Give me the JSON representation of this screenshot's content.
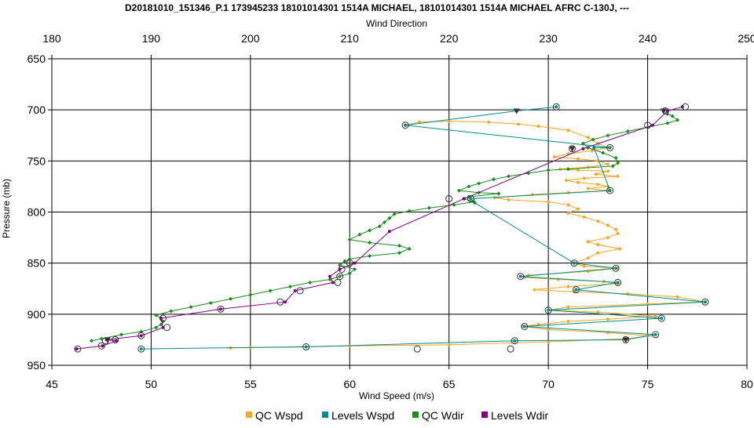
{
  "chart_data": {
    "type": "line",
    "title": "D20181010_151346_P.1 173945233 18101014301 1514A MICHAEL, 18101014301 1514A MICHAEL AFRC C-130J, ---",
    "xlabel_bottom": "Wind Speed (m/s)",
    "xlabel_top": "Wind Direction",
    "ylabel": "Pressure (mb)",
    "x_bottom_range": [
      45,
      80
    ],
    "x_bottom_ticks": [
      45,
      50,
      55,
      60,
      65,
      70,
      75,
      80
    ],
    "x_top_range": [
      180,
      250
    ],
    "x_top_ticks": [
      180,
      190,
      200,
      210,
      220,
      230,
      240,
      250
    ],
    "y_range": [
      650,
      950
    ],
    "y_inverted": true,
    "y_ticks": [
      650,
      700,
      750,
      800,
      850,
      900,
      950
    ],
    "grid": true,
    "legend_position": "bottom",
    "colors": {
      "qc_wspd": "#f5a623",
      "levels_wspd": "#008b8b",
      "qc_wdir": "#1e8c1e",
      "levels_wdir": "#800080"
    },
    "series": [
      {
        "name": "QC Wspd",
        "axis": "wind_speed",
        "points": [
          [
            62.8,
            715
          ],
          [
            63.5,
            712
          ],
          [
            65.0,
            711
          ],
          [
            67.0,
            712
          ],
          [
            68.5,
            714
          ],
          [
            69.5,
            716
          ],
          [
            71.0,
            720
          ],
          [
            72.0,
            727
          ],
          [
            72.5,
            733
          ],
          [
            73.0,
            737
          ],
          [
            72.2,
            740
          ],
          [
            71.0,
            743
          ],
          [
            70.3,
            746
          ],
          [
            71.5,
            748
          ],
          [
            72.5,
            750
          ],
          [
            73.0,
            753
          ],
          [
            72.0,
            756
          ],
          [
            70.6,
            758
          ],
          [
            71.5,
            759
          ],
          [
            73.0,
            760
          ],
          [
            72.4,
            763
          ],
          [
            73.5,
            765
          ],
          [
            71.8,
            767
          ],
          [
            70.9,
            769
          ],
          [
            71.5,
            771
          ],
          [
            72.5,
            773
          ],
          [
            73.0,
            775
          ],
          [
            72.0,
            777
          ],
          [
            73.0,
            779
          ],
          [
            71.0,
            781
          ],
          [
            69.2,
            783
          ],
          [
            67.3,
            786
          ],
          [
            68.0,
            788
          ],
          [
            70.0,
            790
          ],
          [
            71.0,
            793
          ],
          [
            71.5,
            797
          ],
          [
            71.0,
            801
          ],
          [
            71.8,
            805
          ],
          [
            72.5,
            809
          ],
          [
            73.0,
            813
          ],
          [
            73.4,
            817
          ],
          [
            73.5,
            821
          ],
          [
            73.0,
            825
          ],
          [
            72.0,
            829
          ],
          [
            72.5,
            832
          ],
          [
            73.6,
            836
          ],
          [
            72.5,
            840
          ],
          [
            72.0,
            845
          ],
          [
            71.3,
            850
          ],
          [
            71.8,
            853
          ],
          [
            73.5,
            855
          ],
          [
            72.0,
            858
          ],
          [
            69.0,
            862
          ],
          [
            68.8,
            864
          ],
          [
            70.5,
            866
          ],
          [
            72.8,
            868
          ],
          [
            73.5,
            870
          ],
          [
            71.0,
            873
          ],
          [
            69.3,
            876
          ],
          [
            71.3,
            878
          ],
          [
            74.0,
            880
          ],
          [
            76.5,
            883
          ],
          [
            77.9,
            888
          ],
          [
            75.0,
            890
          ],
          [
            71.0,
            893
          ],
          [
            70.0,
            896
          ],
          [
            72.5,
            898
          ],
          [
            75.4,
            902
          ],
          [
            73.0,
            905
          ],
          [
            71.0,
            907
          ],
          [
            69.5,
            910
          ],
          [
            68.7,
            912
          ],
          [
            70.0,
            915
          ],
          [
            73.0,
            918
          ],
          [
            75.0,
            921
          ],
          [
            74.0,
            924
          ],
          [
            70.0,
            927
          ],
          [
            65.0,
            930
          ],
          [
            60.0,
            931
          ],
          [
            55.0,
            932.5
          ],
          [
            54.0,
            933
          ]
        ]
      },
      {
        "name": "Levels Wspd",
        "axis": "wind_speed",
        "points": [
          [
            70.4,
            697
          ],
          [
            68.4,
            701
          ],
          [
            62.8,
            715
          ],
          [
            73.1,
            737
          ],
          [
            72.3,
            737
          ],
          [
            73.1,
            779
          ],
          [
            66.1,
            787
          ],
          [
            66.3,
            791
          ],
          [
            71.3,
            850
          ],
          [
            73.4,
            855
          ],
          [
            68.6,
            863
          ],
          [
            73.5,
            869
          ],
          [
            71.4,
            876
          ],
          [
            77.9,
            888
          ],
          [
            70.0,
            896
          ],
          [
            75.7,
            904
          ],
          [
            68.8,
            912
          ],
          [
            75.4,
            920
          ],
          [
            73.9,
            925
          ],
          [
            68.3,
            926
          ],
          [
            57.8,
            932
          ],
          [
            49.5,
            934
          ]
        ]
      },
      {
        "name": "QC Wdir",
        "axis": "wind_direction",
        "points": [
          [
            242,
            704
          ],
          [
            242.5,
            706
          ],
          [
            243,
            710
          ],
          [
            242,
            713
          ],
          [
            240,
            717
          ],
          [
            238,
            721
          ],
          [
            236,
            725
          ],
          [
            234.5,
            729
          ],
          [
            233.5,
            733
          ],
          [
            234,
            737
          ],
          [
            235.5,
            742
          ],
          [
            236.8,
            747
          ],
          [
            237,
            752
          ],
          [
            236.5,
            755
          ],
          [
            232,
            758
          ],
          [
            230,
            759
          ],
          [
            228,
            762
          ],
          [
            226,
            765
          ],
          [
            224.5,
            768
          ],
          [
            223,
            772
          ],
          [
            222,
            775
          ],
          [
            221,
            779
          ],
          [
            223,
            781
          ],
          [
            225,
            782
          ],
          [
            222,
            785
          ],
          [
            221.5,
            787
          ],
          [
            222.5,
            790
          ],
          [
            220.5,
            793
          ],
          [
            218,
            796
          ],
          [
            216,
            799
          ],
          [
            214.5,
            802
          ],
          [
            214,
            806
          ],
          [
            213.5,
            810
          ],
          [
            213,
            814
          ],
          [
            212,
            818
          ],
          [
            211,
            822
          ],
          [
            210,
            827
          ],
          [
            212,
            830
          ],
          [
            215,
            833
          ],
          [
            216,
            836
          ],
          [
            215,
            840
          ],
          [
            212,
            843
          ],
          [
            210,
            846
          ],
          [
            209.5,
            848
          ],
          [
            209,
            852
          ],
          [
            210.5,
            856
          ],
          [
            210,
            860
          ],
          [
            209,
            863
          ],
          [
            208,
            866
          ],
          [
            206,
            869
          ],
          [
            204,
            873
          ],
          [
            202,
            877
          ],
          [
            200,
            881
          ],
          [
            198,
            885
          ],
          [
            196,
            889
          ],
          [
            194,
            893
          ],
          [
            192,
            897
          ],
          [
            190.5,
            901
          ],
          [
            191,
            904
          ],
          [
            191.2,
            907
          ],
          [
            191,
            910
          ],
          [
            190.5,
            913
          ],
          [
            189,
            917
          ],
          [
            187,
            920
          ],
          [
            185,
            924
          ],
          [
            184,
            926
          ]
        ]
      },
      {
        "name": "Levels Wdir",
        "axis": "wind_direction",
        "points": [
          [
            243.5,
            697
          ],
          [
            242,
            701
          ],
          [
            240.5,
            715
          ],
          [
            233.5,
            738
          ],
          [
            221.5,
            787
          ],
          [
            214,
            819
          ],
          [
            210.5,
            850
          ],
          [
            209,
            856
          ],
          [
            208,
            863
          ],
          [
            208.3,
            869
          ],
          [
            204.5,
            877
          ],
          [
            203.5,
            888
          ],
          [
            197,
            895
          ],
          [
            191,
            904
          ],
          [
            191.2,
            913
          ],
          [
            189,
            921
          ],
          [
            185.5,
            925
          ],
          [
            186.5,
            926
          ],
          [
            185.1,
            931
          ],
          [
            182.5,
            934
          ]
        ]
      }
    ],
    "open_circle_markers": [
      [
        70.4,
        697
      ],
      [
        62.8,
        715
      ],
      [
        73.1,
        737
      ],
      [
        73.1,
        779
      ],
      [
        66.1,
        787
      ],
      [
        71.3,
        850
      ],
      [
        73.4,
        855
      ],
      [
        68.6,
        863
      ],
      [
        73.5,
        869
      ],
      [
        71.4,
        876
      ],
      [
        77.9,
        888
      ],
      [
        70.0,
        896
      ],
      [
        75.7,
        904
      ],
      [
        68.8,
        912
      ],
      [
        75.4,
        920
      ],
      [
        73.9,
        925
      ],
      [
        68.3,
        926
      ],
      [
        68.1,
        934
      ],
      [
        63.4,
        934
      ],
      [
        57.8,
        932
      ],
      [
        49.5,
        934
      ],
      [
        48.2,
        925
      ],
      [
        47.7,
        926
      ],
      [
        47.5,
        931
      ],
      [
        46.3,
        934
      ],
      [
        75.9,
        701
      ],
      [
        76.9,
        697
      ],
      [
        75.0,
        715
      ],
      [
        71.2,
        738
      ],
      [
        65.0,
        787
      ],
      [
        60.0,
        850
      ],
      [
        59.6,
        856
      ],
      [
        59.5,
        863
      ],
      [
        59.4,
        869
      ],
      [
        57.5,
        877
      ],
      [
        56.5,
        888
      ],
      [
        53.5,
        895
      ],
      [
        50.6,
        904
      ],
      [
        50.8,
        913
      ],
      [
        49.5,
        921
      ]
    ],
    "triangle_markers": [
      [
        68.4,
        701
      ],
      [
        75.8,
        701
      ],
      [
        73.9,
        925
      ],
      [
        47.8,
        925
      ],
      [
        71.2,
        738
      ]
    ]
  }
}
